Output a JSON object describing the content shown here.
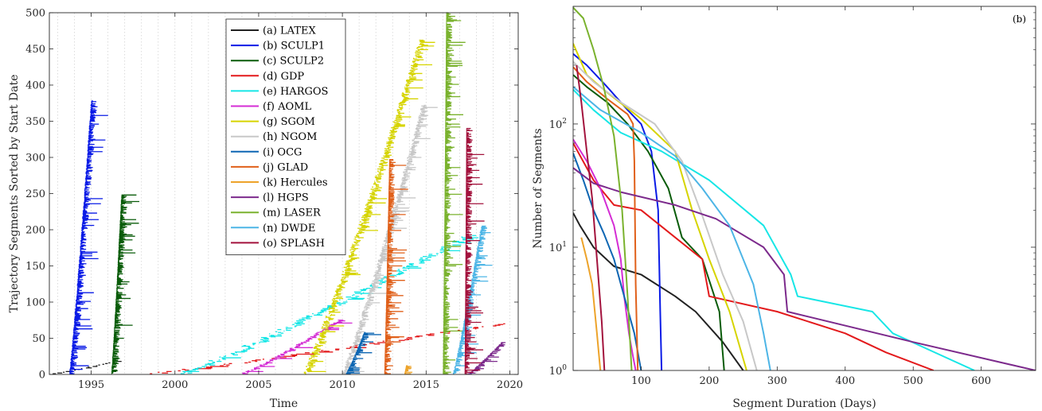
{
  "chart_data": [
    {
      "type": "scatter",
      "panel": "left",
      "xlabel": "Time",
      "ylabel": "Trajectory Segments Sorted by Start Date",
      "xlim": [
        1992.5,
        2020.5
      ],
      "ylim": [
        0,
        500
      ],
      "xticks": [
        1995,
        2000,
        2005,
        2010,
        2015,
        2020
      ],
      "yticks": [
        0,
        50,
        100,
        150,
        200,
        250,
        300,
        350,
        400,
        450,
        500
      ],
      "grid": "vertical dotted",
      "legend_position": "top-center",
      "series": [
        {
          "name": "(a) LATEX",
          "color": "#222222",
          "start": 1992.7,
          "end": 1996.5,
          "count": 18,
          "offset": 0
        },
        {
          "name": "(b) SCULP1",
          "color": "#0a1be6",
          "start": 1993.7,
          "end": 1995.0,
          "count": 378,
          "offset": 0
        },
        {
          "name": "(c) SCULP2",
          "color": "#0a5c0a",
          "start": 1996.2,
          "end": 1996.8,
          "count": 248,
          "offset": 0
        },
        {
          "name": "(d) GDP",
          "color": "#e31a1c",
          "start": 1998.5,
          "end": 2019.5,
          "count": 70,
          "offset": 0
        },
        {
          "name": "(e) HARGOS",
          "color": "#17e6e6",
          "start": 2000.3,
          "end": 2017.5,
          "count": 192,
          "offset": 0
        },
        {
          "name": "(f) AOML",
          "color": "#d42dd4",
          "start": 2004.0,
          "end": 2009.8,
          "count": 75,
          "offset": 0
        },
        {
          "name": "(g) SGOM",
          "color": "#d6d400",
          "start": 2007.7,
          "end": 2014.7,
          "count": 462,
          "offset": 0
        },
        {
          "name": "(h) NGOM",
          "color": "#c8c8c8",
          "start": 2010.0,
          "end": 2014.8,
          "count": 372,
          "offset": 0
        },
        {
          "name": "(i) OCG",
          "color": "#0d66b3",
          "start": 2010.2,
          "end": 2011.3,
          "count": 58,
          "offset": 0
        },
        {
          "name": "(j) GLAD",
          "color": "#e0601a",
          "start": 2012.5,
          "end": 2012.8,
          "count": 297,
          "offset": 0
        },
        {
          "name": "(k) Hercules",
          "color": "#eda32a",
          "start": 2013.7,
          "end": 2013.8,
          "count": 12,
          "offset": 0
        },
        {
          "name": "(l) HGPS",
          "color": "#7c2a8c",
          "start": 2017.5,
          "end": 2019.5,
          "count": 44,
          "offset": 0
        },
        {
          "name": "(m) LASER",
          "color": "#7ab22e",
          "start": 2016.0,
          "end": 2016.2,
          "count": 500,
          "offset": 0
        },
        {
          "name": "(n) DWDE",
          "color": "#4db5e6",
          "start": 2016.6,
          "end": 2018.3,
          "count": 205,
          "offset": 0
        },
        {
          "name": "(o) SPLASH",
          "color": "#a3133d",
          "start": 2017.3,
          "end": 2017.4,
          "count": 340,
          "offset": 0
        }
      ]
    },
    {
      "type": "line",
      "panel": "right",
      "xlabel": "Segment Duration (Days)",
      "ylabel": "Number of Segments",
      "yscale": "log",
      "xlim": [
        0,
        680
      ],
      "ylim": [
        1,
        900
      ],
      "xticks": [
        100,
        200,
        300,
        400,
        500,
        600
      ],
      "yticks": [
        1,
        10,
        100
      ],
      "panel_tag": "(b)",
      "series": [
        {
          "name": "(a) LATEX",
          "color": "#222222",
          "x": [
            0,
            10,
            30,
            60,
            100,
            150,
            180,
            220,
            250
          ],
          "y": [
            19,
            15,
            10,
            7,
            6,
            4,
            3,
            1.7,
            1
          ]
        },
        {
          "name": "(b) SCULP1",
          "color": "#0a1be6",
          "x": [
            0,
            20,
            50,
            80,
            100,
            115,
            125,
            128,
            130
          ],
          "y": [
            370,
            300,
            200,
            130,
            100,
            60,
            20,
            3,
            1
          ]
        },
        {
          "name": "(c) SCULP2",
          "color": "#0a5c0a",
          "x": [
            0,
            20,
            50,
            80,
            110,
            140,
            160,
            190,
            215,
            222
          ],
          "y": [
            250,
            200,
            150,
            100,
            60,
            30,
            12,
            8,
            3,
            1
          ]
        },
        {
          "name": "(d) GDP",
          "color": "#e31a1c",
          "x": [
            0,
            30,
            60,
            100,
            150,
            190,
            200,
            300,
            400,
            460,
            530
          ],
          "y": [
            70,
            35,
            22,
            20,
            12,
            8,
            4,
            3,
            2,
            1.4,
            1
          ]
        },
        {
          "name": "(e) HARGOS",
          "color": "#17e6e6",
          "x": [
            0,
            30,
            70,
            130,
            200,
            280,
            320,
            330,
            440,
            470,
            590
          ],
          "y": [
            190,
            130,
            85,
            60,
            35,
            15,
            6,
            4,
            3,
            2,
            1
          ]
        },
        {
          "name": "(f) AOML",
          "color": "#d42dd4",
          "x": [
            0,
            20,
            40,
            60,
            70,
            75,
            82,
            88,
            92
          ],
          "y": [
            75,
            50,
            30,
            15,
            8,
            4,
            2,
            1.3,
            1
          ]
        },
        {
          "name": "(g) SGOM",
          "color": "#d6d400",
          "x": [
            0,
            20,
            50,
            100,
            150,
            175,
            200,
            230,
            255
          ],
          "y": [
            450,
            250,
            180,
            110,
            60,
            20,
            8,
            3,
            1
          ]
        },
        {
          "name": "(h) NGOM",
          "color": "#c8c8c8",
          "x": [
            0,
            30,
            70,
            120,
            160,
            190,
            220,
            250,
            270
          ],
          "y": [
            320,
            220,
            150,
            100,
            50,
            18,
            6,
            2.5,
            1
          ]
        },
        {
          "name": "(i) OCG",
          "color": "#0d66b3",
          "x": [
            0,
            15,
            30,
            45,
            60,
            75,
            90,
            100
          ],
          "y": [
            58,
            35,
            20,
            13,
            8,
            4,
            2,
            1
          ]
        },
        {
          "name": "(j) GLAD",
          "color": "#e0601a",
          "x": [
            0,
            20,
            50,
            80,
            88,
            90,
            92,
            95
          ],
          "y": [
            290,
            220,
            160,
            120,
            100,
            50,
            5,
            1
          ]
        },
        {
          "name": "(k) Hercules",
          "color": "#eda32a",
          "x": [
            12,
            20,
            28,
            35,
            40
          ],
          "y": [
            12,
            8,
            5,
            2,
            1
          ]
        },
        {
          "name": "(l) HGPS",
          "color": "#7c2a8c",
          "x": [
            0,
            30,
            70,
            150,
            210,
            280,
            310,
            315,
            500,
            680
          ],
          "y": [
            44,
            33,
            28,
            22,
            17,
            10,
            6,
            3,
            1.7,
            1
          ]
        },
        {
          "name": "(m) LASER",
          "color": "#7ab22e",
          "x": [
            0,
            15,
            30,
            45,
            60,
            72,
            80,
            86
          ],
          "y": [
            880,
            720,
            400,
            200,
            80,
            20,
            4,
            1
          ]
        },
        {
          "name": "(n) DWDE",
          "color": "#4db5e6",
          "x": [
            0,
            40,
            100,
            150,
            190,
            230,
            265,
            280,
            290
          ],
          "y": [
            200,
            130,
            85,
            55,
            30,
            15,
            5,
            2,
            1
          ]
        },
        {
          "name": "(o) SPLASH",
          "color": "#a3133d",
          "x": [
            5,
            12,
            20,
            28,
            35,
            42,
            46
          ],
          "y": [
            300,
            150,
            60,
            25,
            8,
            2.5,
            1
          ]
        }
      ]
    }
  ]
}
